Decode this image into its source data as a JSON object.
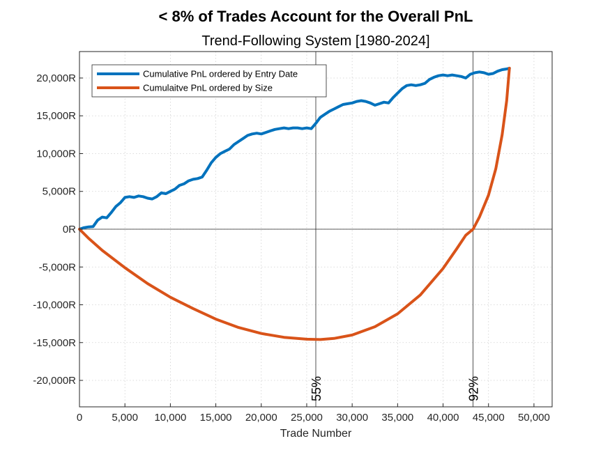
{
  "chart_data": {
    "type": "line",
    "title": "< 8% of Trades Account for the Overall PnL",
    "subtitle": "Trend-Following System [1980-2024]",
    "xlabel": "Trade Number",
    "ylabel": "",
    "xlim": [
      0,
      52000
    ],
    "ylim": [
      -23500,
      23500
    ],
    "xticks": [
      0,
      5000,
      10000,
      15000,
      20000,
      25000,
      30000,
      35000,
      40000,
      45000,
      50000
    ],
    "xtick_labels": [
      "0",
      "5,000",
      "10,000",
      "15,000",
      "20,000",
      "25,000",
      "30,000",
      "35,000",
      "40,000",
      "45,000",
      "50,000"
    ],
    "yticks": [
      -20000,
      -15000,
      -10000,
      -5000,
      0,
      5000,
      10000,
      15000,
      20000
    ],
    "ytick_labels": [
      "-20,000R",
      "-15,000R",
      "-10,000R",
      "-5,000R",
      "0R",
      "5,000R",
      "10,000R",
      "15,000R",
      "20,000R"
    ],
    "grid": true,
    "legend_position": "top-left",
    "series": [
      {
        "name": "Cumulative PnL ordered by Entry Date",
        "color": "#0072BD",
        "x": [
          0,
          500,
          1000,
          1500,
          2000,
          2500,
          3000,
          3500,
          4000,
          4500,
          5000,
          5500,
          6000,
          6500,
          7000,
          7500,
          8000,
          8500,
          9000,
          9500,
          10000,
          10500,
          11000,
          11500,
          12000,
          12500,
          13000,
          13500,
          14000,
          14500,
          15000,
          15500,
          16000,
          16500,
          17000,
          17500,
          18000,
          18500,
          19000,
          19500,
          20000,
          20500,
          21000,
          21500,
          22000,
          22500,
          23000,
          23500,
          24000,
          24500,
          25000,
          25500,
          26000,
          26500,
          27000,
          27500,
          28000,
          28500,
          29000,
          29500,
          30000,
          30500,
          31000,
          31500,
          32000,
          32500,
          33000,
          33500,
          34000,
          34500,
          35000,
          35500,
          36000,
          36500,
          37000,
          37500,
          38000,
          38500,
          39000,
          39500,
          40000,
          40500,
          41000,
          41500,
          42000,
          42500,
          43000,
          43500,
          44000,
          44500,
          45000,
          45500,
          46000,
          46500,
          47000,
          47300
        ],
        "values": [
          0,
          200,
          300,
          350,
          1200,
          1600,
          1500,
          2200,
          3000,
          3500,
          4200,
          4300,
          4200,
          4400,
          4300,
          4100,
          4000,
          4300,
          4800,
          4700,
          5000,
          5300,
          5800,
          6000,
          6400,
          6600,
          6700,
          6900,
          7800,
          8800,
          9500,
          10000,
          10300,
          10600,
          11200,
          11600,
          12000,
          12400,
          12600,
          12700,
          12600,
          12800,
          13000,
          13200,
          13300,
          13400,
          13300,
          13400,
          13400,
          13300,
          13400,
          13300,
          14000,
          14800,
          15200,
          15600,
          15900,
          16200,
          16500,
          16600,
          16700,
          16900,
          17000,
          16900,
          16700,
          16400,
          16600,
          16800,
          16700,
          17400,
          18000,
          18600,
          19000,
          19100,
          19000,
          19100,
          19300,
          19800,
          20100,
          20300,
          20400,
          20300,
          20400,
          20300,
          20200,
          20000,
          20500,
          20700,
          20800,
          20700,
          20500,
          20600,
          20900,
          21100,
          21200,
          21300
        ]
      },
      {
        "name": "Cumulaitve PnL ordered by Size",
        "color": "#D95319",
        "x": [
          0,
          1000,
          2500,
          5000,
          7500,
          10000,
          12500,
          15000,
          17500,
          20000,
          22500,
          25000,
          26500,
          28000,
          30000,
          32500,
          35000,
          37500,
          40000,
          41500,
          42500,
          43300,
          44000,
          45000,
          45800,
          46500,
          47000,
          47300
        ],
        "values": [
          0,
          -1200,
          -2800,
          -5100,
          -7200,
          -9000,
          -10500,
          -11900,
          -13000,
          -13800,
          -14300,
          -14550,
          -14600,
          -14450,
          -14000,
          -12900,
          -11200,
          -8700,
          -5200,
          -2600,
          -800,
          0,
          1600,
          4500,
          8000,
          12500,
          17000,
          21300
        ]
      }
    ],
    "vlines": [
      {
        "x": 26000,
        "label": "55%"
      },
      {
        "x": 43300,
        "label": "92%"
      }
    ]
  }
}
